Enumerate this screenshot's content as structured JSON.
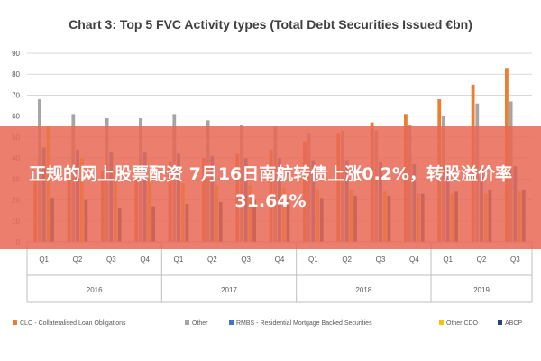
{
  "banner": {
    "headline": "正规的网上股票配资 7月16日南航转债上涨0.2%，转股溢价率31.64%"
  },
  "chart_data": {
    "type": "bar",
    "title": "Chart 3: Top 5 FVC Activity types (Total Debt Securities Issued €bn)",
    "xlabel": "",
    "ylabel": "",
    "ylim": [
      0,
      90
    ],
    "yticks": [
      0,
      10,
      20,
      30,
      40,
      50,
      60,
      70,
      80,
      90
    ],
    "grid": true,
    "legend_position": "bottom",
    "categories": [
      "Q1",
      "Q2",
      "Q3",
      "Q4",
      "Q1",
      "Q2",
      "Q3",
      "Q4",
      "Q1",
      "Q2",
      "Q3",
      "Q4",
      "Q1",
      "Q2",
      "Q3"
    ],
    "groups": [
      {
        "label": "2016",
        "count": 4
      },
      {
        "label": "2017",
        "count": 4
      },
      {
        "label": "2018",
        "count": 4
      },
      {
        "label": "2019",
        "count": 3
      }
    ],
    "series": [
      {
        "name": "CLO - Collateralised Loan Obligations",
        "color": "#ed7d31",
        "values": [
          30,
          32,
          34,
          36,
          38,
          40,
          42,
          44,
          48,
          52,
          57,
          61,
          68,
          75,
          83
        ]
      },
      {
        "name": "Other",
        "color": "#a5a5a5",
        "values": [
          68,
          61,
          59,
          59,
          61,
          58,
          56,
          55,
          52,
          53,
          53,
          56,
          60,
          66,
          67
        ]
      },
      {
        "name": "RMBS - Residential Mortgage Backed Securities",
        "color": "#4472c4",
        "values": [
          45,
          44,
          43,
          43,
          42,
          41,
          40,
          40,
          39,
          39,
          38,
          37,
          36,
          36,
          36
        ]
      },
      {
        "name": "Other CDO",
        "color": "#ffc000",
        "values": [
          55,
          40,
          34,
          30,
          28,
          27,
          27,
          26,
          25,
          25,
          24,
          23,
          23,
          23,
          24
        ]
      },
      {
        "name": "ABCP",
        "color": "#264478",
        "values": [
          21,
          20,
          16,
          17,
          18,
          19,
          20,
          20,
          21,
          22,
          22,
          23,
          24,
          25,
          25
        ]
      }
    ]
  }
}
